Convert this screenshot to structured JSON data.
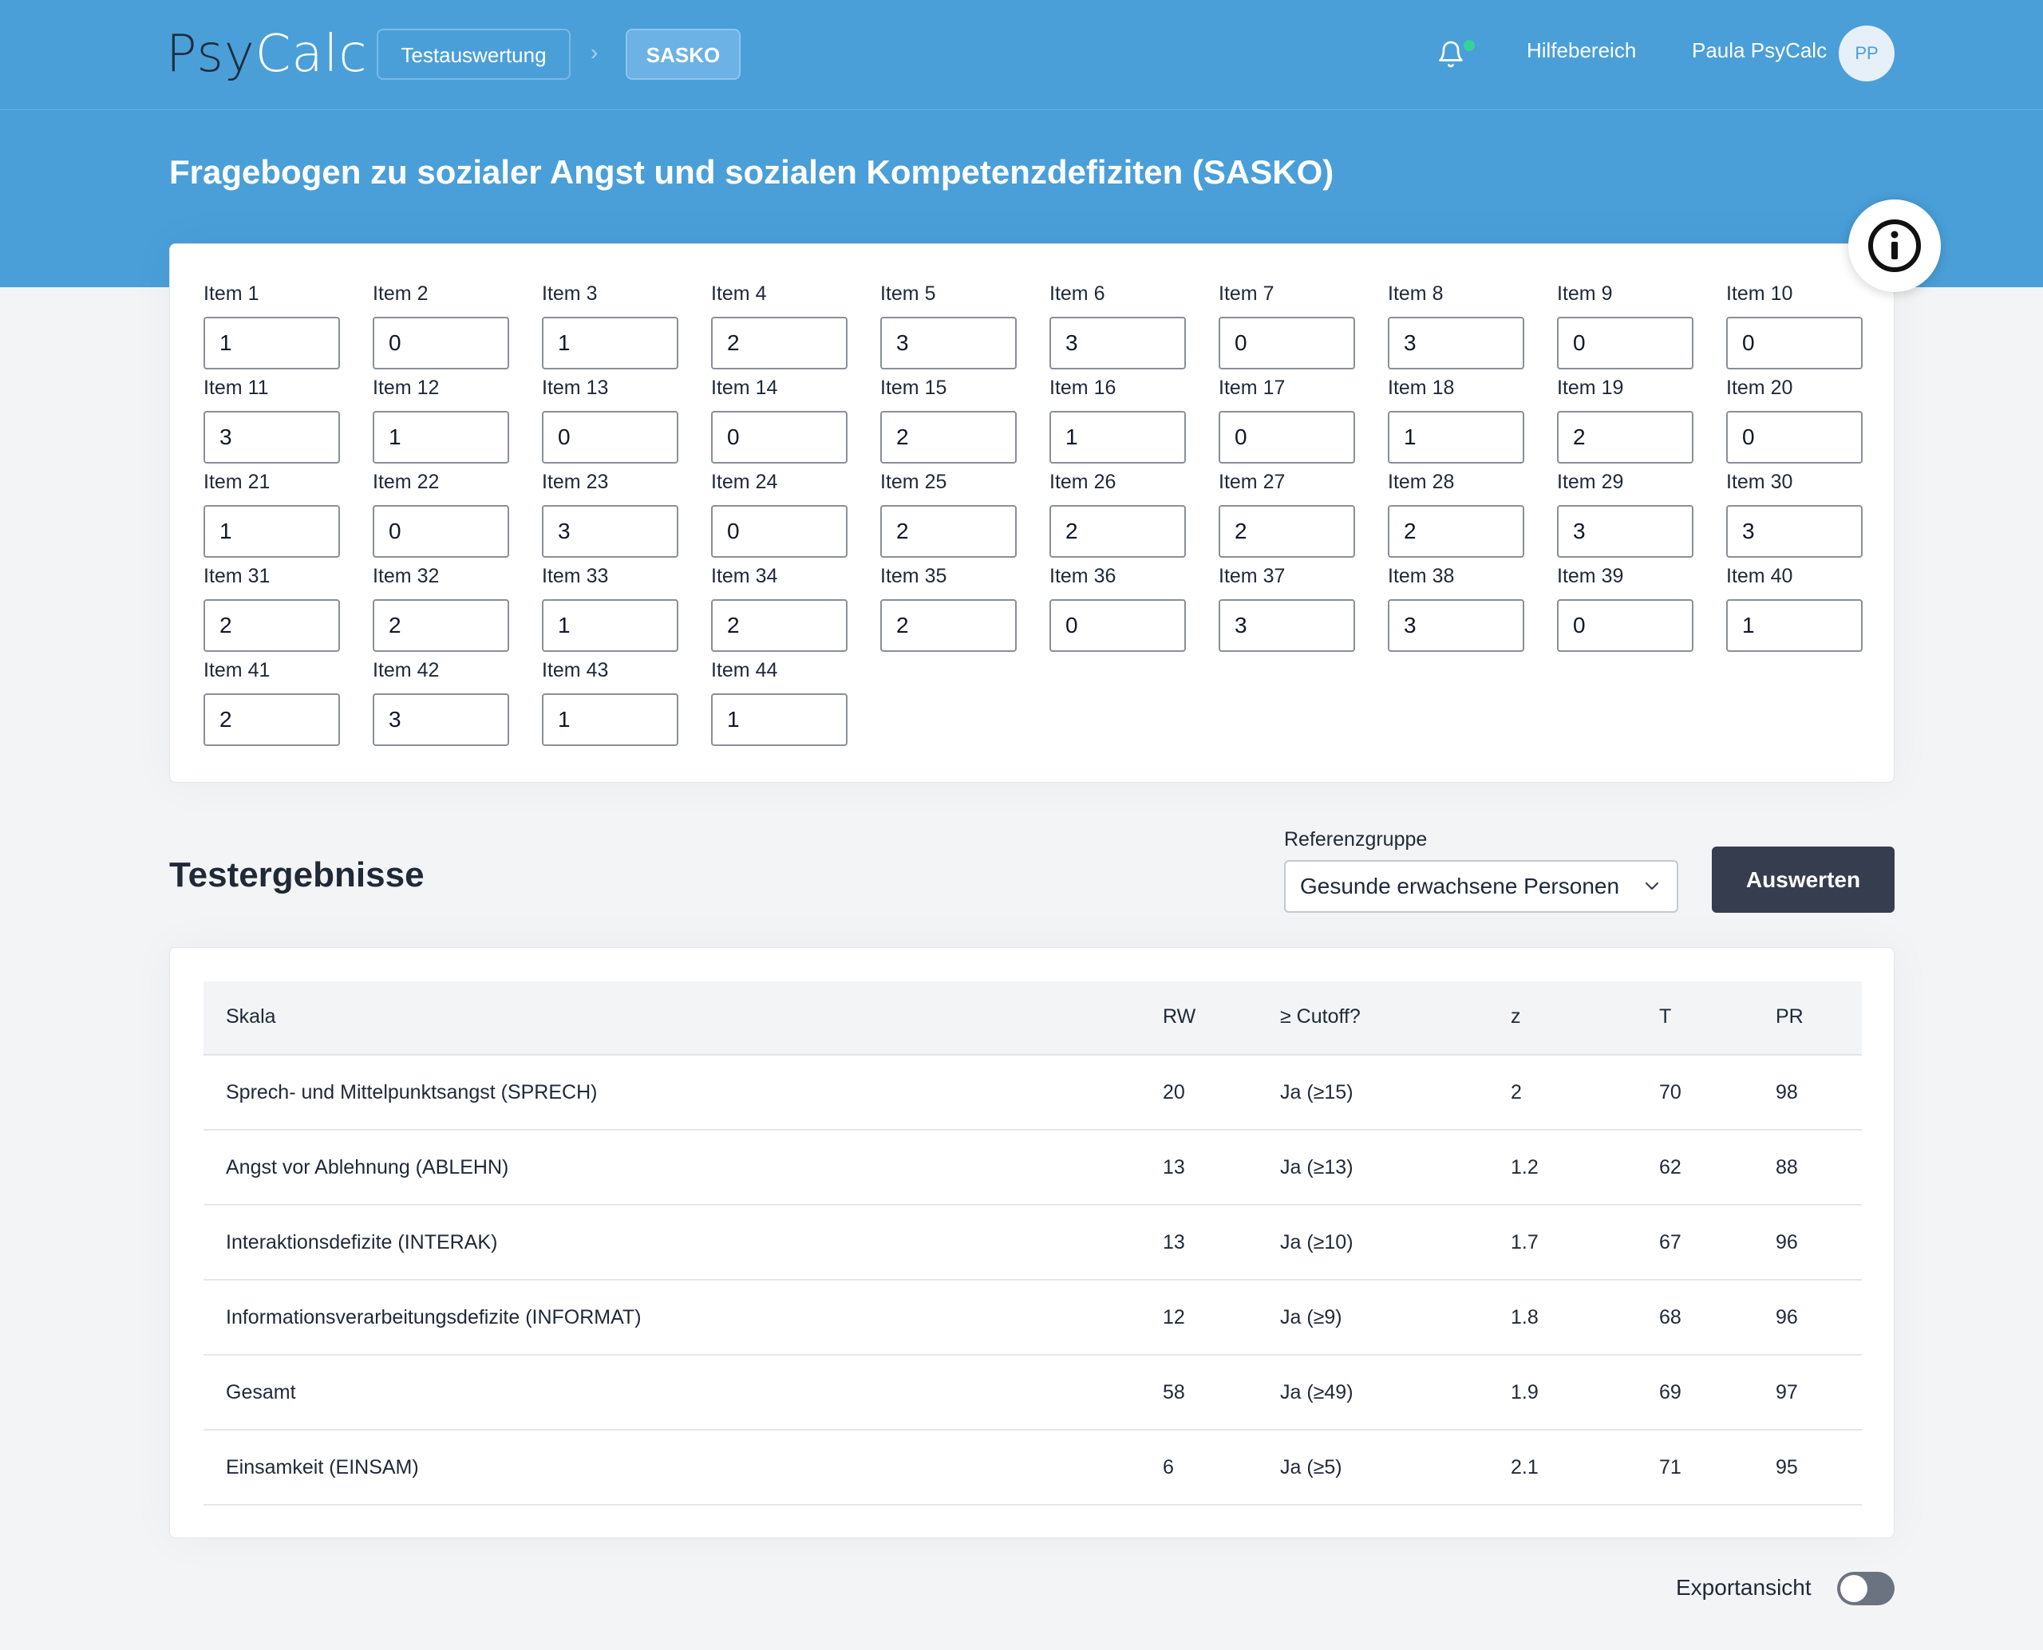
{
  "header": {
    "logo_part1": "Psy",
    "logo_part2": "Calc",
    "breadcrumb": [
      "Testauswertung",
      "SASKO"
    ],
    "breadcrumb_separator": "›",
    "help_label": "Hilfebereich",
    "user_name": "Paula PsyCalc",
    "user_initials": "PP",
    "notification_icon": "bell-icon",
    "notification_dot_color": "#34d399"
  },
  "page": {
    "title": "Fragebogen zu sozialer Angst und sozialen Kompetenzdefiziten (SASKO)",
    "info_icon": "info-icon"
  },
  "items": [
    {
      "label": "Item 1",
      "value": "1"
    },
    {
      "label": "Item 2",
      "value": "0"
    },
    {
      "label": "Item 3",
      "value": "1"
    },
    {
      "label": "Item 4",
      "value": "2"
    },
    {
      "label": "Item 5",
      "value": "3"
    },
    {
      "label": "Item 6",
      "value": "3"
    },
    {
      "label": "Item 7",
      "value": "0"
    },
    {
      "label": "Item 8",
      "value": "3"
    },
    {
      "label": "Item 9",
      "value": "0"
    },
    {
      "label": "Item 10",
      "value": "0"
    },
    {
      "label": "Item 11",
      "value": "3"
    },
    {
      "label": "Item 12",
      "value": "1"
    },
    {
      "label": "Item 13",
      "value": "0"
    },
    {
      "label": "Item 14",
      "value": "0"
    },
    {
      "label": "Item 15",
      "value": "2"
    },
    {
      "label": "Item 16",
      "value": "1"
    },
    {
      "label": "Item 17",
      "value": "0"
    },
    {
      "label": "Item 18",
      "value": "1"
    },
    {
      "label": "Item 19",
      "value": "2"
    },
    {
      "label": "Item 20",
      "value": "0"
    },
    {
      "label": "Item 21",
      "value": "1"
    },
    {
      "label": "Item 22",
      "value": "0"
    },
    {
      "label": "Item 23",
      "value": "3"
    },
    {
      "label": "Item 24",
      "value": "0"
    },
    {
      "label": "Item 25",
      "value": "2"
    },
    {
      "label": "Item 26",
      "value": "2"
    },
    {
      "label": "Item 27",
      "value": "2"
    },
    {
      "label": "Item 28",
      "value": "2"
    },
    {
      "label": "Item 29",
      "value": "3"
    },
    {
      "label": "Item 30",
      "value": "3"
    },
    {
      "label": "Item 31",
      "value": "2"
    },
    {
      "label": "Item 32",
      "value": "2"
    },
    {
      "label": "Item 33",
      "value": "1"
    },
    {
      "label": "Item 34",
      "value": "2"
    },
    {
      "label": "Item 35",
      "value": "2"
    },
    {
      "label": "Item 36",
      "value": "0"
    },
    {
      "label": "Item 37",
      "value": "3"
    },
    {
      "label": "Item 38",
      "value": "3"
    },
    {
      "label": "Item 39",
      "value": "0"
    },
    {
      "label": "Item 40",
      "value": "1"
    },
    {
      "label": "Item 41",
      "value": "2"
    },
    {
      "label": "Item 42",
      "value": "3"
    },
    {
      "label": "Item 43",
      "value": "1"
    },
    {
      "label": "Item 44",
      "value": "1"
    }
  ],
  "results": {
    "title": "Testergebnisse",
    "reference_label": "Referenzgruppe",
    "reference_selected": "Gesunde erwachsene Personen",
    "evaluate_label": "Auswerten",
    "columns": [
      "Skala",
      "RW",
      "≥ Cutoff?",
      "z",
      "T",
      "PR"
    ],
    "rows": [
      [
        "Sprech- und Mittelpunktsangst (SPRECH)",
        "20",
        "Ja (≥15)",
        "2",
        "70",
        "98"
      ],
      [
        "Angst vor Ablehnung (ABLEHN)",
        "13",
        "Ja (≥13)",
        "1.2",
        "62",
        "88"
      ],
      [
        "Interaktionsdefizite (INTERAK)",
        "13",
        "Ja (≥10)",
        "1.7",
        "67",
        "96"
      ],
      [
        "Informationsverarbeitungsdefizite (INFORMAT)",
        "12",
        "Ja (≥9)",
        "1.8",
        "68",
        "96"
      ],
      [
        "Gesamt",
        "58",
        "Ja (≥49)",
        "1.9",
        "69",
        "97"
      ],
      [
        "Einsamkeit (EINSAM)",
        "6",
        "Ja (≥5)",
        "2.1",
        "71",
        "95"
      ]
    ]
  },
  "export": {
    "label": "Exportansicht",
    "enabled": false
  },
  "colors": {
    "header_blue": "#4a9fd8",
    "button_dark": "#363d4e"
  }
}
